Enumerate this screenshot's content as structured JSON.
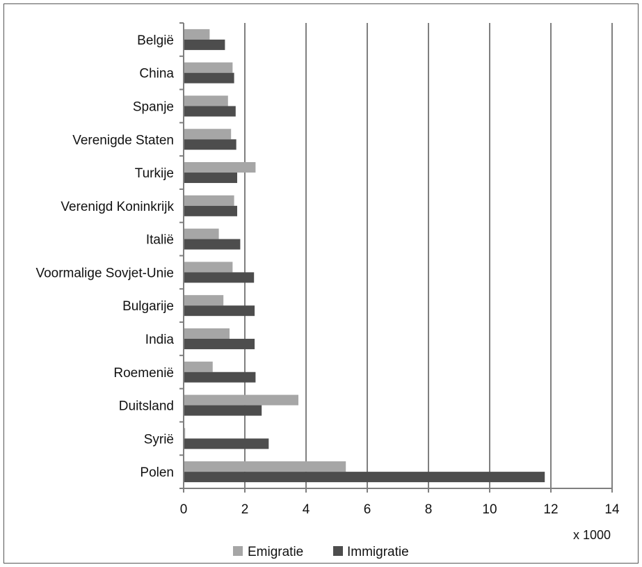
{
  "chart_data": {
    "type": "bar",
    "orientation": "horizontal",
    "categories": [
      "België",
      "China",
      "Spanje",
      "Verenigde Staten",
      "Turkije",
      "Verenigd Koninkrijk",
      "Italië",
      "Voormalige Sovjet-Unie",
      "Bulgarije",
      "India",
      "Roemenië",
      "Duitsland",
      "Syrië",
      "Polen"
    ],
    "series": [
      {
        "name": "Emigratie",
        "color": "#a6a6a6",
        "values": [
          0.85,
          1.6,
          1.45,
          1.55,
          2.35,
          1.65,
          1.15,
          1.6,
          1.3,
          1.5,
          0.95,
          3.75,
          0.05,
          5.3
        ]
      },
      {
        "name": "Immigratie",
        "color": "#4d4d4d",
        "values": [
          1.35,
          1.65,
          1.7,
          1.72,
          1.75,
          1.75,
          1.85,
          2.3,
          2.32,
          2.32,
          2.35,
          2.55,
          2.78,
          11.8
        ]
      }
    ],
    "xlim": [
      0,
      14
    ],
    "xticks": [
      "0",
      "2",
      "4",
      "6",
      "8",
      "10",
      "12",
      "14"
    ],
    "unit_label": "x 1000",
    "grid": true,
    "legend_position": "bottom"
  }
}
